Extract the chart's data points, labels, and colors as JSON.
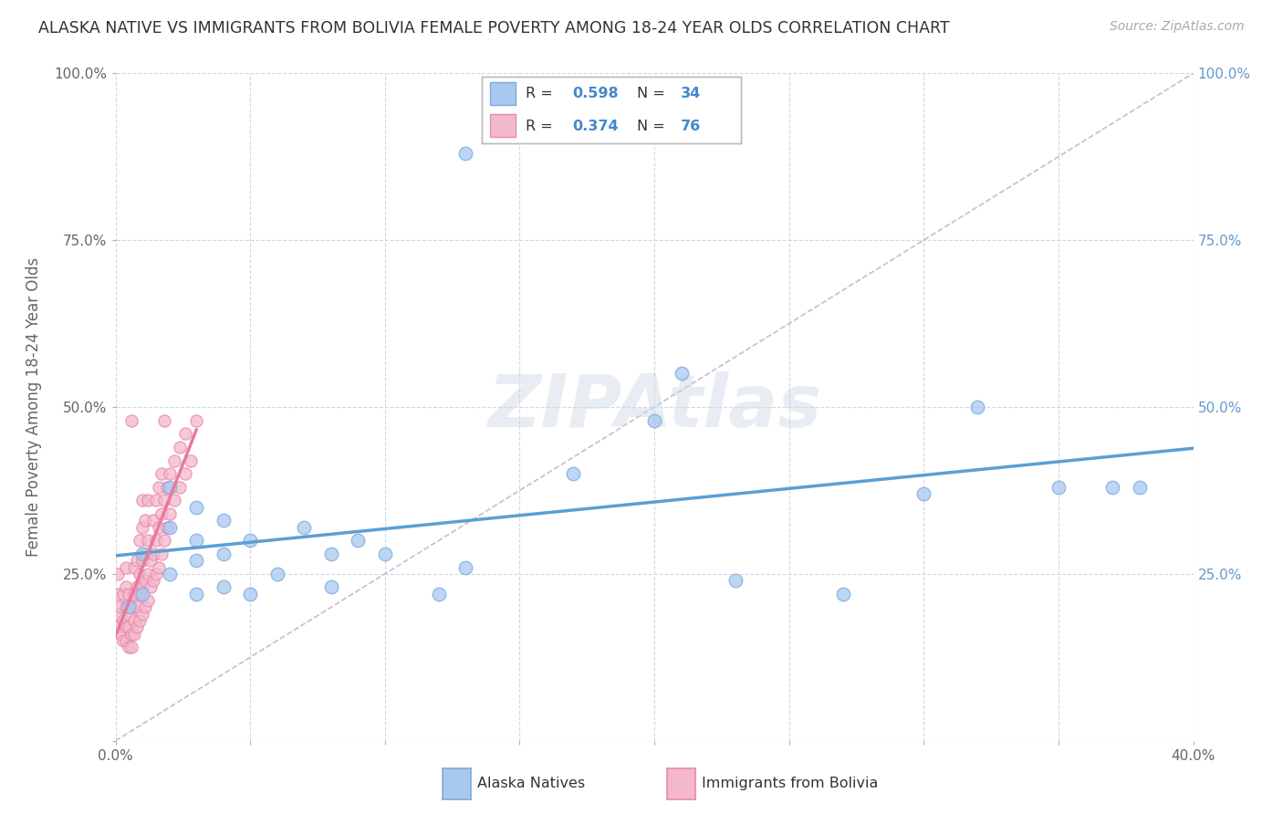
{
  "title": "ALASKA NATIVE VS IMMIGRANTS FROM BOLIVIA FEMALE POVERTY AMONG 18-24 YEAR OLDS CORRELATION CHART",
  "source": "Source: ZipAtlas.com",
  "ylabel": "Female Poverty Among 18-24 Year Olds",
  "xlim": [
    0.0,
    0.4
  ],
  "ylim": [
    0.0,
    1.0
  ],
  "xticks": [
    0.0,
    0.05,
    0.1,
    0.15,
    0.2,
    0.25,
    0.3,
    0.35,
    0.4
  ],
  "yticks": [
    0.0,
    0.25,
    0.5,
    0.75,
    1.0
  ],
  "xtick_labels": [
    "0.0%",
    "",
    "",
    "",
    "",
    "",
    "",
    "",
    "40.0%"
  ],
  "ytick_labels": [
    "",
    "25.0%",
    "50.0%",
    "75.0%",
    "100.0%"
  ],
  "alaska_color": "#a8c8f0",
  "bolivia_color": "#f4b8cc",
  "alaska_edge": "#7aabdf",
  "bolivia_edge": "#e88aaa",
  "alaska_line_color": "#5a9fd4",
  "bolivia_line_color": "#e87a9a",
  "R_alaska": 0.598,
  "N_alaska": 34,
  "R_bolivia": 0.374,
  "N_bolivia": 76,
  "watermark": "ZIPAtlas",
  "alaska_scatter_x": [
    0.005,
    0.01,
    0.01,
    0.02,
    0.02,
    0.02,
    0.03,
    0.03,
    0.03,
    0.03,
    0.04,
    0.04,
    0.04,
    0.05,
    0.05,
    0.06,
    0.07,
    0.08,
    0.08,
    0.09,
    0.1,
    0.12,
    0.13,
    0.17,
    0.2,
    0.21,
    0.23,
    0.27,
    0.3,
    0.32,
    0.35,
    0.37,
    0.38,
    0.13
  ],
  "alaska_scatter_y": [
    0.2,
    0.22,
    0.28,
    0.25,
    0.32,
    0.38,
    0.22,
    0.27,
    0.3,
    0.35,
    0.23,
    0.28,
    0.33,
    0.22,
    0.3,
    0.25,
    0.32,
    0.23,
    0.28,
    0.3,
    0.28,
    0.22,
    0.26,
    0.4,
    0.48,
    0.55,
    0.24,
    0.22,
    0.37,
    0.5,
    0.38,
    0.38,
    0.38,
    0.88
  ],
  "bolivia_scatter_x": [
    0.001,
    0.001,
    0.001,
    0.001,
    0.002,
    0.002,
    0.003,
    0.003,
    0.003,
    0.004,
    0.004,
    0.004,
    0.004,
    0.004,
    0.005,
    0.005,
    0.005,
    0.005,
    0.006,
    0.006,
    0.006,
    0.006,
    0.007,
    0.007,
    0.007,
    0.007,
    0.008,
    0.008,
    0.008,
    0.008,
    0.009,
    0.009,
    0.009,
    0.009,
    0.01,
    0.01,
    0.01,
    0.01,
    0.01,
    0.011,
    0.011,
    0.011,
    0.011,
    0.012,
    0.012,
    0.012,
    0.012,
    0.013,
    0.013,
    0.014,
    0.014,
    0.014,
    0.015,
    0.015,
    0.015,
    0.016,
    0.016,
    0.016,
    0.017,
    0.017,
    0.017,
    0.018,
    0.018,
    0.018,
    0.019,
    0.019,
    0.02,
    0.02,
    0.022,
    0.022,
    0.024,
    0.024,
    0.026,
    0.026,
    0.028,
    0.03
  ],
  "bolivia_scatter_y": [
    0.17,
    0.19,
    0.22,
    0.25,
    0.16,
    0.2,
    0.15,
    0.18,
    0.22,
    0.15,
    0.17,
    0.2,
    0.23,
    0.26,
    0.14,
    0.17,
    0.19,
    0.22,
    0.14,
    0.16,
    0.2,
    0.48,
    0.16,
    0.18,
    0.22,
    0.26,
    0.17,
    0.2,
    0.23,
    0.27,
    0.18,
    0.22,
    0.25,
    0.3,
    0.19,
    0.23,
    0.27,
    0.32,
    0.36,
    0.2,
    0.24,
    0.28,
    0.33,
    0.21,
    0.25,
    0.3,
    0.36,
    0.23,
    0.27,
    0.24,
    0.28,
    0.33,
    0.25,
    0.3,
    0.36,
    0.26,
    0.32,
    0.38,
    0.28,
    0.34,
    0.4,
    0.3,
    0.36,
    0.48,
    0.32,
    0.38,
    0.34,
    0.4,
    0.36,
    0.42,
    0.38,
    0.44,
    0.4,
    0.46,
    0.42,
    0.48
  ],
  "background_color": "#ffffff",
  "grid_color": "#d0d8e0",
  "legend_x_label": "Alaska Natives",
  "legend_y_label": "Immigrants from Bolivia"
}
